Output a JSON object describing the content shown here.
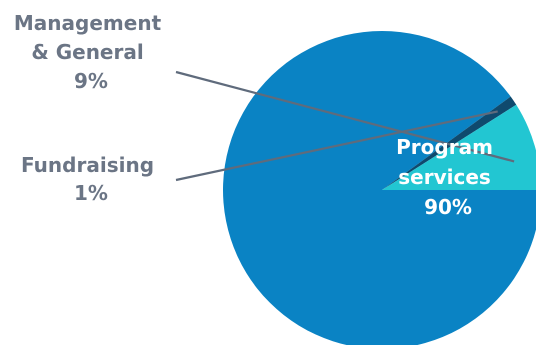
{
  "chart_data": {
    "type": "pie",
    "title": "",
    "slices": [
      {
        "label_lines": [
          "Program",
          "services"
        ],
        "percent_text": "90%",
        "value": 90,
        "color": "#0a83c4"
      },
      {
        "label_lines": [
          "Fundraising"
        ],
        "percent_text": "1%",
        "value": 1,
        "color": "#0f4a6e"
      },
      {
        "label_lines": [
          "Management",
          "& General"
        ],
        "percent_text": "9%",
        "value": 9,
        "color": "#22c6d2"
      }
    ],
    "start_angle_deg": 0,
    "label_color": "#6b7585",
    "inside_label_color": "#ffffff",
    "leader_color": "#5f6b7c"
  }
}
